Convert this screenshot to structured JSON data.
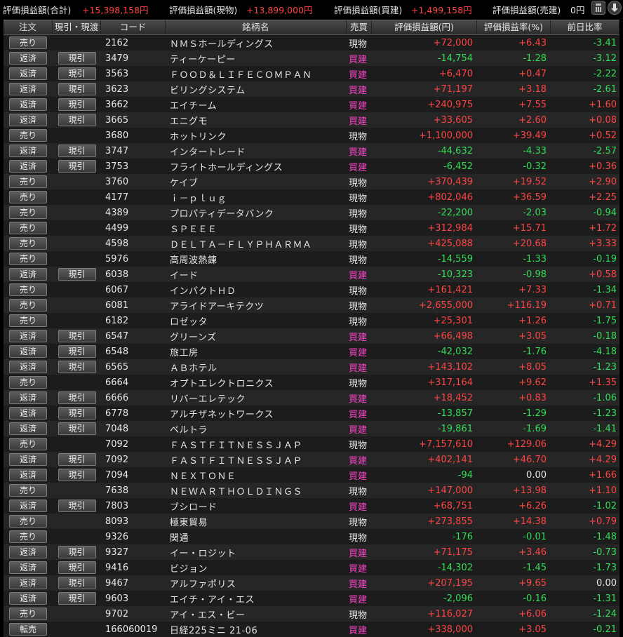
{
  "summary": {
    "total_label": "評価損益額(合計)",
    "total_value": "+15,398,158円",
    "spot_label": "評価損益額(現物)",
    "spot_value": "+13,899,000円",
    "long_label": "評価損益額(買建)",
    "long_value": "+1,499,158円",
    "short_label": "評価損益額(売建)",
    "short_value": "0円",
    "calculator_icon": "calculator-icon",
    "download_icon": "download-icon"
  },
  "columns": {
    "order": "注文",
    "genbiki": "現引・現渡",
    "code": "コード",
    "name": "銘柄名",
    "side": "売買",
    "pl": "評価損益額(円)",
    "rate": "評価損益率(%)",
    "prev": "前日比率"
  },
  "colors": {
    "positive": "#ff4444",
    "negative": "#33dd55",
    "margin_buy": "#ff44cc"
  },
  "rows": [
    {
      "order": "売り",
      "genbiki": "",
      "code": "2162",
      "name": "ＮＭＳホールディングス",
      "side": "現物",
      "pl": "+72,000",
      "rate": "+6.43",
      "prev": "-3.41"
    },
    {
      "order": "返済",
      "genbiki": "現引",
      "code": "3479",
      "name": "ティーケーピー",
      "side": "買建",
      "pl": "-14,754",
      "rate": "-1.28",
      "prev": "-3.12"
    },
    {
      "order": "返済",
      "genbiki": "現引",
      "code": "3563",
      "name": "ＦＯＯＤ＆ＬＩＦＥＣＯＭＰＡＮ",
      "side": "買建",
      "pl": "+6,470",
      "rate": "+0.47",
      "prev": "-2.22"
    },
    {
      "order": "返済",
      "genbiki": "現引",
      "code": "3623",
      "name": "ビリングシステム",
      "side": "買建",
      "pl": "+71,197",
      "rate": "+3.18",
      "prev": "-2.61"
    },
    {
      "order": "返済",
      "genbiki": "現引",
      "code": "3662",
      "name": "エイチーム",
      "side": "買建",
      "pl": "+240,975",
      "rate": "+7.55",
      "prev": "+1.60"
    },
    {
      "order": "返済",
      "genbiki": "現引",
      "code": "3665",
      "name": "エニグモ",
      "side": "買建",
      "pl": "+33,605",
      "rate": "+2.60",
      "prev": "+0.08"
    },
    {
      "order": "売り",
      "genbiki": "",
      "code": "3680",
      "name": "ホットリンク",
      "side": "現物",
      "pl": "+1,100,000",
      "rate": "+39.49",
      "prev": "+0.52"
    },
    {
      "order": "返済",
      "genbiki": "現引",
      "code": "3747",
      "name": "インタートレード",
      "side": "買建",
      "pl": "-44,632",
      "rate": "-4.33",
      "prev": "-2.57"
    },
    {
      "order": "返済",
      "genbiki": "現引",
      "code": "3753",
      "name": "フライトホールディングス",
      "side": "買建",
      "pl": "-6,452",
      "rate": "-0.32",
      "prev": "+0.36"
    },
    {
      "order": "売り",
      "genbiki": "",
      "code": "3760",
      "name": "ケイブ",
      "side": "現物",
      "pl": "+370,439",
      "rate": "+19.52",
      "prev": "+2.90"
    },
    {
      "order": "売り",
      "genbiki": "",
      "code": "4177",
      "name": "ｉ－ｐｌｕｇ",
      "side": "現物",
      "pl": "+802,046",
      "rate": "+36.59",
      "prev": "+2.25"
    },
    {
      "order": "売り",
      "genbiki": "",
      "code": "4389",
      "name": "プロパティデータバンク",
      "side": "現物",
      "pl": "-22,200",
      "rate": "-2.03",
      "prev": "-0.94"
    },
    {
      "order": "売り",
      "genbiki": "",
      "code": "4499",
      "name": "ＳＰＥＥＥ",
      "side": "現物",
      "pl": "+312,984",
      "rate": "+15.71",
      "prev": "+1.72"
    },
    {
      "order": "売り",
      "genbiki": "",
      "code": "4598",
      "name": "ＤＥＬＴＡ－ＦＬＹＰＨＡＲＭＡ",
      "side": "現物",
      "pl": "+425,088",
      "rate": "+20.68",
      "prev": "+3.33"
    },
    {
      "order": "売り",
      "genbiki": "",
      "code": "5976",
      "name": "高周波熱錬",
      "side": "現物",
      "pl": "-14,559",
      "rate": "-1.33",
      "prev": "-0.19"
    },
    {
      "order": "返済",
      "genbiki": "現引",
      "code": "6038",
      "name": "イード",
      "side": "買建",
      "pl": "-10,323",
      "rate": "-0.98",
      "prev": "+0.58"
    },
    {
      "order": "売り",
      "genbiki": "",
      "code": "6067",
      "name": "インパクトＨＤ",
      "side": "現物",
      "pl": "+161,421",
      "rate": "+7.33",
      "prev": "-1.34"
    },
    {
      "order": "売り",
      "genbiki": "",
      "code": "6081",
      "name": "アライドアーキテクツ",
      "side": "現物",
      "pl": "+2,655,000",
      "rate": "+116.19",
      "prev": "+0.71"
    },
    {
      "order": "売り",
      "genbiki": "",
      "code": "6182",
      "name": "ロゼッタ",
      "side": "現物",
      "pl": "+25,301",
      "rate": "+1.26",
      "prev": "-1.75"
    },
    {
      "order": "返済",
      "genbiki": "現引",
      "code": "6547",
      "name": "グリーンズ",
      "side": "買建",
      "pl": "+66,498",
      "rate": "+3.05",
      "prev": "-0.18"
    },
    {
      "order": "返済",
      "genbiki": "現引",
      "code": "6548",
      "name": "旅工房",
      "side": "買建",
      "pl": "-42,032",
      "rate": "-1.76",
      "prev": "-4.18"
    },
    {
      "order": "返済",
      "genbiki": "現引",
      "code": "6565",
      "name": "ＡＢホテル",
      "side": "買建",
      "pl": "+143,102",
      "rate": "+8.05",
      "prev": "-1.23"
    },
    {
      "order": "売り",
      "genbiki": "",
      "code": "6664",
      "name": "オプトエレクトロニクス",
      "side": "現物",
      "pl": "+317,164",
      "rate": "+9.62",
      "prev": "+1.35"
    },
    {
      "order": "返済",
      "genbiki": "現引",
      "code": "6666",
      "name": "リバーエレテック",
      "side": "買建",
      "pl": "+18,452",
      "rate": "+0.83",
      "prev": "-1.06"
    },
    {
      "order": "返済",
      "genbiki": "現引",
      "code": "6778",
      "name": "アルチザネットワークス",
      "side": "買建",
      "pl": "-13,857",
      "rate": "-1.29",
      "prev": "-1.23"
    },
    {
      "order": "返済",
      "genbiki": "現引",
      "code": "7048",
      "name": "ベルトラ",
      "side": "買建",
      "pl": "-19,861",
      "rate": "-1.69",
      "prev": "-1.41"
    },
    {
      "order": "売り",
      "genbiki": "",
      "code": "7092",
      "name": "ＦＡＳＴＦＩＴＮＥＳＳＪＡＰ",
      "side": "現物",
      "pl": "+7,157,610",
      "rate": "+129.06",
      "prev": "+4.29"
    },
    {
      "order": "返済",
      "genbiki": "現引",
      "code": "7092",
      "name": "ＦＡＳＴＦＩＴＮＥＳＳＪＡＰ",
      "side": "買建",
      "pl": "+402,141",
      "rate": "+46.70",
      "prev": "+4.29"
    },
    {
      "order": "返済",
      "genbiki": "現引",
      "code": "7094",
      "name": "ＮＥＸＴＯＮＥ",
      "side": "買建",
      "pl": "-94",
      "rate": "0.00",
      "prev": "+1.66"
    },
    {
      "order": "売り",
      "genbiki": "",
      "code": "7638",
      "name": "ＮＥＷＡＲＴＨＯＬＤＩＮＧＳ",
      "side": "現物",
      "pl": "+147,000",
      "rate": "+13.98",
      "prev": "+1.10"
    },
    {
      "order": "返済",
      "genbiki": "現引",
      "code": "7803",
      "name": "ブシロード",
      "side": "買建",
      "pl": "+68,751",
      "rate": "+6.26",
      "prev": "-1.02"
    },
    {
      "order": "売り",
      "genbiki": "",
      "code": "8093",
      "name": "極東貿易",
      "side": "現物",
      "pl": "+273,855",
      "rate": "+14.38",
      "prev": "+0.79"
    },
    {
      "order": "売り",
      "genbiki": "",
      "code": "9326",
      "name": "関通",
      "side": "現物",
      "pl": "-176",
      "rate": "-0.01",
      "prev": "-1.48"
    },
    {
      "order": "返済",
      "genbiki": "現引",
      "code": "9327",
      "name": "イー・ロジット",
      "side": "買建",
      "pl": "+71,175",
      "rate": "+3.46",
      "prev": "-0.73"
    },
    {
      "order": "返済",
      "genbiki": "現引",
      "code": "9416",
      "name": "ビジョン",
      "side": "買建",
      "pl": "-14,302",
      "rate": "-1.45",
      "prev": "-1.73"
    },
    {
      "order": "返済",
      "genbiki": "現引",
      "code": "9467",
      "name": "アルファポリス",
      "side": "買建",
      "pl": "+207,195",
      "rate": "+9.65",
      "prev": "0.00"
    },
    {
      "order": "返済",
      "genbiki": "現引",
      "code": "9603",
      "name": "エイチ・アイ・エス",
      "side": "買建",
      "pl": "-2,096",
      "rate": "-0.16",
      "prev": "-1.31"
    },
    {
      "order": "売り",
      "genbiki": "",
      "code": "9702",
      "name": "アイ・エス・ビー",
      "side": "現物",
      "pl": "+116,027",
      "rate": "+6.06",
      "prev": "-1.24"
    },
    {
      "order": "転売",
      "genbiki": "",
      "code": "166060019",
      "name": "日経225ミニ 21-06",
      "side": "買建",
      "pl": "+338,000",
      "rate": "+3.05",
      "prev": "-0.21"
    }
  ]
}
